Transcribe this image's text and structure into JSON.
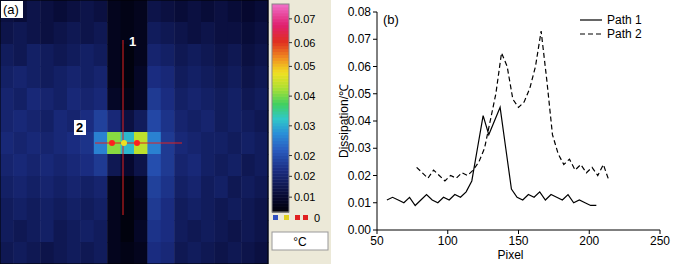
{
  "chart_data": [
    {
      "type": "heatmap",
      "title": "(a)",
      "cells": [
        [
          0.012,
          0.011,
          0.013,
          0.012,
          0.011,
          0.012,
          0.013,
          0.012,
          0.008,
          0.007,
          0.008,
          0.013,
          0.012,
          0.011,
          0.012,
          0.011,
          0.012,
          0.011,
          0.01,
          0.011
        ],
        [
          0.013,
          0.014,
          0.013,
          0.012,
          0.013,
          0.014,
          0.013,
          0.014,
          0.008,
          0.007,
          0.008,
          0.015,
          0.014,
          0.013,
          0.012,
          0.013,
          0.012,
          0.012,
          0.011,
          0.012
        ],
        [
          0.015,
          0.014,
          0.016,
          0.015,
          0.014,
          0.015,
          0.016,
          0.015,
          0.008,
          0.006,
          0.008,
          0.017,
          0.016,
          0.014,
          0.015,
          0.014,
          0.013,
          0.014,
          0.012,
          0.013
        ],
        [
          0.016,
          0.017,
          0.016,
          0.015,
          0.016,
          0.017,
          0.016,
          0.017,
          0.008,
          0.006,
          0.009,
          0.019,
          0.018,
          0.015,
          0.016,
          0.015,
          0.014,
          0.015,
          0.013,
          0.014
        ],
        [
          0.017,
          0.016,
          0.018,
          0.017,
          0.016,
          0.018,
          0.017,
          0.018,
          0.009,
          0.007,
          0.009,
          0.021,
          0.019,
          0.016,
          0.017,
          0.016,
          0.015,
          0.016,
          0.014,
          0.015
        ],
        [
          0.017,
          0.018,
          0.017,
          0.016,
          0.018,
          0.017,
          0.019,
          0.022,
          0.018,
          0.012,
          0.015,
          0.023,
          0.02,
          0.017,
          0.016,
          0.017,
          0.015,
          0.016,
          0.015,
          0.014
        ],
        [
          0.018,
          0.017,
          0.018,
          0.017,
          0.018,
          0.019,
          0.02,
          0.03,
          0.045,
          0.035,
          0.048,
          0.03,
          0.021,
          0.018,
          0.017,
          0.016,
          0.016,
          0.015,
          0.016,
          0.015
        ],
        [
          0.017,
          0.018,
          0.017,
          0.018,
          0.017,
          0.018,
          0.019,
          0.021,
          0.014,
          0.01,
          0.013,
          0.024,
          0.021,
          0.017,
          0.018,
          0.016,
          0.015,
          0.016,
          0.014,
          0.015
        ],
        [
          0.016,
          0.017,
          0.016,
          0.017,
          0.016,
          0.017,
          0.016,
          0.017,
          0.008,
          0.006,
          0.009,
          0.022,
          0.02,
          0.016,
          0.017,
          0.015,
          0.016,
          0.014,
          0.015,
          0.014
        ],
        [
          0.015,
          0.016,
          0.015,
          0.016,
          0.015,
          0.016,
          0.015,
          0.016,
          0.008,
          0.006,
          0.008,
          0.021,
          0.019,
          0.015,
          0.016,
          0.015,
          0.014,
          0.015,
          0.014,
          0.013
        ],
        [
          0.015,
          0.014,
          0.015,
          0.016,
          0.014,
          0.015,
          0.016,
          0.015,
          0.008,
          0.006,
          0.009,
          0.02,
          0.019,
          0.015,
          0.014,
          0.015,
          0.014,
          0.013,
          0.014,
          0.013
        ],
        [
          0.014,
          0.015,
          0.014,
          0.013,
          0.014,
          0.015,
          0.014,
          0.015,
          0.008,
          0.007,
          0.008,
          0.019,
          0.018,
          0.014,
          0.015,
          0.014,
          0.013,
          0.014,
          0.013,
          0.012
        ]
      ],
      "colorbar": {
        "range": [
          0.005,
          0.075
        ],
        "ticks": [
          0.07,
          {
            "value": 0.062,
            "label": "0.06"
          },
          {
            "value": 0.054,
            "label": "0.05"
          },
          {
            "value": 0.044,
            "label": "0.04"
          },
          {
            "value": 0.034,
            "label": "0.03"
          },
          {
            "value": 0.024,
            "label": "0.02"
          },
          {
            "value": 0.017,
            "label": "0.02"
          },
          0.01
        ]
      },
      "unit": "°C",
      "colorbar_note": "0",
      "path_labels": [
        "1",
        "2"
      ]
    },
    {
      "type": "line",
      "title": "(b)",
      "x_label": "Pixel",
      "y_label": "Dissipation/℃",
      "xlim": [
        50,
        250
      ],
      "xticks": [
        50,
        100,
        150,
        200,
        250
      ],
      "ylim": [
        0,
        0.08
      ],
      "yticks": [
        {
          "value": 0,
          "label": "0.00"
        },
        0.01,
        0.02,
        0.03,
        0.04,
        0.05,
        0.06,
        0.07,
        0.08
      ],
      "legend": "top-right",
      "series": [
        {
          "name": "Path 1",
          "color": "#000000",
          "line_style": "solid",
          "x": [
            57,
            61,
            65,
            69,
            73,
            77,
            81,
            85,
            89,
            93,
            97,
            101,
            105,
            109,
            113,
            117,
            121,
            125,
            129,
            133,
            137,
            141,
            145,
            149,
            153,
            157,
            161,
            165,
            169,
            173,
            177,
            181,
            185,
            189,
            193,
            197,
            201,
            205
          ],
          "values": [
            0.011,
            0.012,
            0.011,
            0.01,
            0.012,
            0.009,
            0.011,
            0.013,
            0.011,
            0.01,
            0.012,
            0.011,
            0.013,
            0.012,
            0.014,
            0.018,
            0.03,
            0.042,
            0.035,
            0.04,
            0.045,
            0.03,
            0.015,
            0.012,
            0.011,
            0.013,
            0.012,
            0.014,
            0.011,
            0.013,
            0.012,
            0.011,
            0.013,
            0.01,
            0.011,
            0.01,
            0.009,
            0.009
          ]
        },
        {
          "name": "Path 2",
          "color": "#000000",
          "line_style": "dashed",
          "x": [
            78,
            82,
            86,
            90,
            94,
            98,
            102,
            106,
            110,
            114,
            118,
            122,
            126,
            130,
            134,
            138,
            142,
            146,
            150,
            154,
            158,
            162,
            166,
            170,
            174,
            178,
            182,
            186,
            190,
            194,
            198,
            202,
            206,
            210,
            214
          ],
          "values": [
            0.023,
            0.021,
            0.019,
            0.022,
            0.02,
            0.018,
            0.02,
            0.019,
            0.021,
            0.02,
            0.022,
            0.025,
            0.03,
            0.04,
            0.05,
            0.065,
            0.06,
            0.048,
            0.045,
            0.047,
            0.052,
            0.06,
            0.073,
            0.055,
            0.035,
            0.028,
            0.024,
            0.026,
            0.022,
            0.024,
            0.021,
            0.023,
            0.02,
            0.024,
            0.018
          ]
        }
      ]
    }
  ]
}
